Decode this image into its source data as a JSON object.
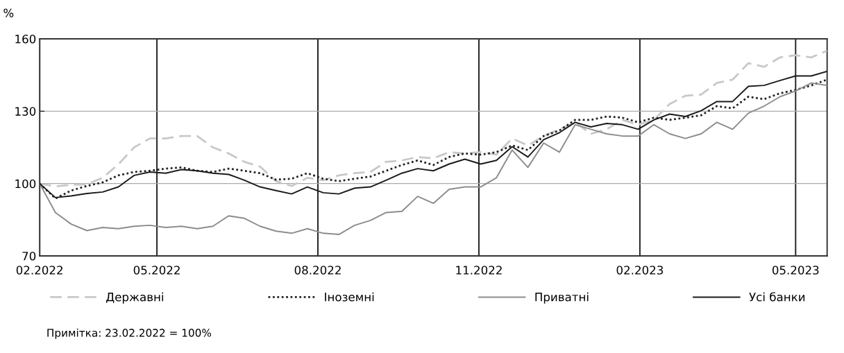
{
  "chart_data": {
    "type": "line",
    "ylabel": "%",
    "x": [
      "2022-02-23",
      "2022-03-04",
      "2022-03-13",
      "2022-03-22",
      "2022-03-31",
      "2022-04-09",
      "2022-04-18",
      "2022-04-27",
      "2022-05-06",
      "2022-05-15",
      "2022-05-24",
      "2022-06-02",
      "2022-06-11",
      "2022-06-20",
      "2022-06-29",
      "2022-07-08",
      "2022-07-17",
      "2022-07-26",
      "2022-08-04",
      "2022-08-13",
      "2022-08-22",
      "2022-08-31",
      "2022-09-09",
      "2022-09-18",
      "2022-09-27",
      "2022-10-06",
      "2022-10-15",
      "2022-10-24",
      "2022-11-02",
      "2022-11-11",
      "2022-11-20",
      "2022-11-29",
      "2022-12-08",
      "2022-12-17",
      "2022-12-26",
      "2023-01-04",
      "2023-01-13",
      "2023-01-22",
      "2023-01-31",
      "2023-02-09",
      "2023-02-18",
      "2023-02-27",
      "2023-03-08",
      "2023-03-17",
      "2023-03-26",
      "2023-04-04",
      "2023-04-13",
      "2023-04-22",
      "2023-05-01",
      "2023-05-10",
      "2023-05-19"
    ],
    "series": [
      {
        "name": "Державні",
        "color": "#c8c8c8",
        "line_style": "dashed",
        "values": [
          100,
          98.8,
          99.5,
          99.7,
          102.4,
          108,
          115,
          118.7,
          118.7,
          119.7,
          119.7,
          115,
          112.5,
          109,
          107,
          101,
          99,
          102.4,
          101.4,
          103.4,
          104.3,
          104.8,
          109,
          109.6,
          111,
          110.5,
          113,
          112.5,
          113,
          112,
          118.7,
          115.8,
          119.7,
          122.5,
          125.4,
          120.6,
          122.5,
          126.4,
          124.4,
          126.4,
          133,
          136.4,
          136.9,
          141.7,
          143.1,
          149.9,
          148.4,
          152.3,
          153.2,
          152.3,
          155.1
        ]
      },
      {
        "name": "Іноземні",
        "color": "#222222",
        "line_style": "dotted",
        "values": [
          100,
          93.8,
          97.1,
          99,
          100.5,
          103.4,
          104.8,
          105.3,
          106.2,
          106.7,
          105.3,
          104.8,
          106.2,
          105.3,
          104.3,
          101.6,
          102,
          104.3,
          102,
          101,
          102,
          102.9,
          105.3,
          107.7,
          109.6,
          107.7,
          111,
          112.5,
          112,
          113,
          115.8,
          113.9,
          119.7,
          122,
          126.4,
          126.4,
          127.8,
          127.3,
          125.4,
          127.3,
          126.4,
          127.3,
          128.3,
          132.1,
          131.2,
          136,
          135,
          137.4,
          138.8,
          140.7,
          143.1
        ]
      },
      {
        "name": "Приватні",
        "color": "#8c8c8c",
        "line_style": "solid",
        "values": [
          100,
          88,
          83.2,
          80.5,
          81.8,
          81.3,
          82.3,
          82.7,
          81.8,
          82.3,
          81.3,
          82.3,
          86.6,
          85.6,
          82.3,
          80.3,
          79.4,
          81.3,
          79.4,
          78.9,
          82.7,
          84.7,
          88,
          88.5,
          94.7,
          91.8,
          97.6,
          98.6,
          98.6,
          102.4,
          113.9,
          106.7,
          116.8,
          113,
          124.4,
          122.5,
          120.6,
          119.7,
          119.7,
          124.4,
          120.6,
          118.7,
          120.6,
          125.4,
          122.5,
          129.2,
          132.1,
          136,
          138.4,
          141.7,
          140.7
        ]
      },
      {
        "name": "Усі банки",
        "color": "#1a1a1a",
        "line_style": "solid",
        "values": [
          100,
          94.2,
          94.9,
          95.9,
          96.5,
          98.6,
          103.4,
          104.8,
          104.3,
          105.8,
          105.3,
          104.3,
          103.8,
          101.4,
          98.6,
          97.1,
          95.7,
          98.6,
          96.2,
          95.7,
          98.1,
          98.6,
          101.4,
          104.3,
          106.2,
          105.3,
          108.1,
          110.1,
          108.1,
          109.6,
          115.3,
          111,
          118.2,
          121.1,
          125.4,
          123.5,
          124.9,
          124.4,
          122.5,
          126.4,
          128.8,
          127.8,
          130.2,
          134,
          134,
          140.3,
          140.7,
          142.7,
          144.6,
          144.6,
          146.5
        ]
      }
    ],
    "xlim": [
      "2022-02-23",
      "2023-05-19"
    ],
    "xticks": [
      {
        "value": "2022-02-23",
        "label": "02.2022"
      },
      {
        "value": "2022-05-01",
        "label": "05.2022"
      },
      {
        "value": "2022-08-01",
        "label": "08.2022"
      },
      {
        "value": "2022-11-01",
        "label": "11.2022"
      },
      {
        "value": "2023-02-01",
        "label": "02.2023"
      },
      {
        "value": "2023-05-01",
        "label": "05.2023"
      }
    ],
    "ylim": [
      70,
      160
    ],
    "yticks": [
      70,
      100,
      130,
      160
    ],
    "grid": true,
    "legend": "bottom",
    "marker": "none",
    "annotations": [
      "Примітка: 23.02.2022 = 100%"
    ]
  }
}
